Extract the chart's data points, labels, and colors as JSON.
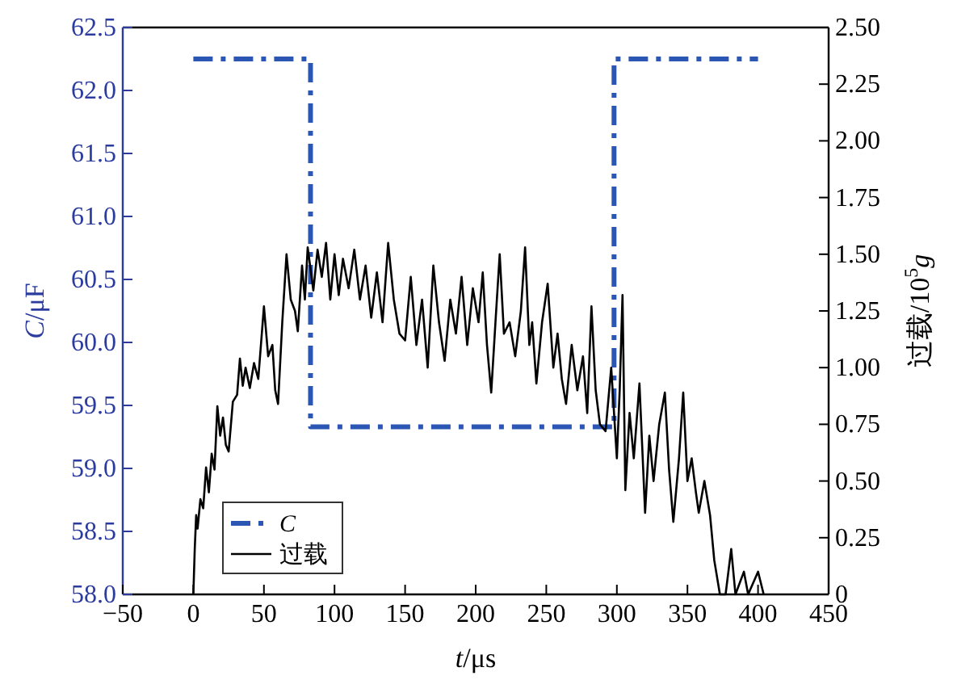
{
  "chart_data": {
    "type": "line",
    "xlabel": "*t*/μs",
    "ylabel": "*C*/μF",
    "y2label": "过载/10$^{5}$*g*",
    "xlim": [
      -50,
      450
    ],
    "xticks": [
      {
        "value": -50,
        "label": "−50"
      },
      0,
      50,
      100,
      150,
      200,
      250,
      300,
      350,
      400,
      450
    ],
    "ylim": [
      58,
      62.5
    ],
    "yticks": [
      {
        "value": 58,
        "label": "58.0"
      },
      {
        "value": 58.5,
        "label": "58.5"
      },
      {
        "value": 59,
        "label": "59.0"
      },
      {
        "value": 59.5,
        "label": "59.5"
      },
      {
        "value": 60,
        "label": "60.0"
      },
      {
        "value": 60.5,
        "label": "60.5"
      },
      {
        "value": 61,
        "label": "61.0"
      },
      {
        "value": 61.5,
        "label": "61.5"
      },
      {
        "value": 62,
        "label": "62.0"
      },
      {
        "value": 62.5,
        "label": "62.5"
      }
    ],
    "y2lim": [
      0,
      2.5
    ],
    "y2ticks": [
      0,
      {
        "value": 0.25,
        "label": "0.25"
      },
      {
        "value": 0.5,
        "label": "0.50"
      },
      {
        "value": 0.75,
        "label": "0.75"
      },
      {
        "value": 1,
        "label": "1.00"
      },
      {
        "value": 1.25,
        "label": "1.25"
      },
      {
        "value": 1.5,
        "label": "1.50"
      },
      {
        "value": 1.75,
        "label": "1.75"
      },
      {
        "value": 2,
        "label": "2.00"
      },
      {
        "value": 2.25,
        "label": "2.25"
      },
      {
        "value": 2.5,
        "label": "2.50"
      }
    ],
    "legend": "bottom left",
    "grid": false,
    "series": [
      {
        "name": "*C*",
        "color": "#2b56b3",
        "line_style": "dashdot",
        "x": [
          0,
          83,
          83,
          298,
          298,
          400
        ],
        "values": [
          62.25,
          62.25,
          59.33,
          59.33,
          62.25,
          62.25
        ]
      },
      {
        "name": "过载",
        "color": "#000000",
        "axis": "y2",
        "line_style": "solid",
        "x": [
          0,
          1,
          2,
          3,
          5,
          7,
          9,
          11,
          13,
          15,
          17,
          19,
          21,
          23,
          25,
          28,
          31,
          33,
          35,
          37,
          40,
          43,
          46,
          50,
          53,
          56,
          58,
          60,
          63,
          66,
          69,
          72,
          74,
          77,
          79,
          81,
          85,
          88,
          91,
          94,
          97,
          100,
          103,
          106,
          110,
          114,
          118,
          122,
          126,
          130,
          134,
          138,
          142,
          146,
          150,
          154,
          158,
          162,
          166,
          170,
          174,
          178,
          182,
          186,
          190,
          194,
          198,
          202,
          205,
          208,
          211,
          214,
          217,
          220,
          224,
          228,
          232,
          235,
          238,
          240,
          243,
          247,
          251,
          255,
          258,
          261,
          264,
          268,
          272,
          276,
          279,
          282,
          285,
          288,
          292,
          296,
          300,
          302,
          304,
          306,
          309,
          312,
          316,
          320,
          323,
          326,
          330,
          334,
          337,
          340,
          344,
          347,
          350,
          353,
          356,
          358,
          362,
          366,
          369,
          373,
          377,
          381,
          384,
          390,
          393,
          400,
          404
        ],
        "values": [
          0,
          0.2,
          0.35,
          0.29,
          0.42,
          0.38,
          0.56,
          0.45,
          0.62,
          0.55,
          0.83,
          0.7,
          0.78,
          0.66,
          0.63,
          0.85,
          0.88,
          1.04,
          0.92,
          1.0,
          0.91,
          1.02,
          0.95,
          1.27,
          1.05,
          1.1,
          0.9,
          0.84,
          1.2,
          1.5,
          1.3,
          1.25,
          1.16,
          1.45,
          1.3,
          1.53,
          1.34,
          1.52,
          1.4,
          1.55,
          1.3,
          1.5,
          1.32,
          1.48,
          1.35,
          1.52,
          1.3,
          1.45,
          1.22,
          1.42,
          1.2,
          1.55,
          1.3,
          1.15,
          1.12,
          1.4,
          1.1,
          1.3,
          1.0,
          1.45,
          1.2,
          1.03,
          1.3,
          1.15,
          1.4,
          1.1,
          1.35,
          1.2,
          1.42,
          1.1,
          0.89,
          1.2,
          1.5,
          1.15,
          1.2,
          1.05,
          1.25,
          1.53,
          1.1,
          1.2,
          0.93,
          1.2,
          1.37,
          1.0,
          1.15,
          0.95,
          0.84,
          1.1,
          0.9,
          1.05,
          0.8,
          1.27,
          0.9,
          0.75,
          0.72,
          1.0,
          0.6,
          0.9,
          1.32,
          0.46,
          0.8,
          0.6,
          0.93,
          0.36,
          0.7,
          0.5,
          0.75,
          0.89,
          0.55,
          0.32,
          0.6,
          0.89,
          0.5,
          0.6,
          0.45,
          0.36,
          0.5,
          0.35,
          0.15,
          0,
          0,
          0.2,
          0,
          0.1,
          0,
          0.1,
          0
        ]
      }
    ]
  }
}
